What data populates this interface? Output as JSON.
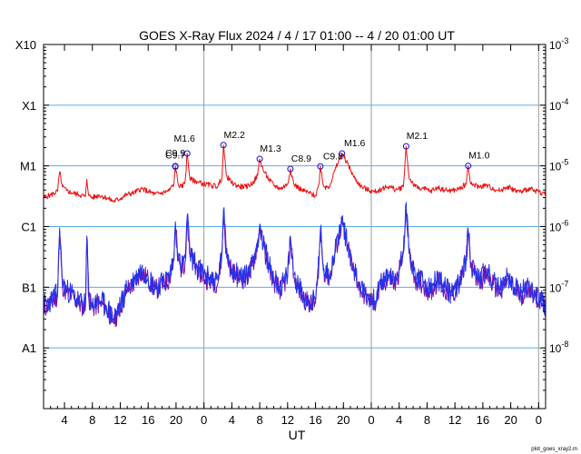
{
  "chart_data": {
    "type": "line",
    "title": "GOES X-Ray Flux   2024  /  4  /  17   01:00 --  4  /  20   01:00   UT",
    "xlabel": "UT",
    "credit": "plot_goes_xray2.m",
    "xlim_hours": [
      0,
      72
    ],
    "y_scale": "log",
    "ylim": [
      1e-09,
      0.001
    ],
    "grid": true,
    "colors": {
      "long_channel": "#ee1111",
      "short_channel": "#2233ee",
      "short_low": "#7711aa",
      "grid": "#5aaee6",
      "day_divider": "#999999",
      "marker": "#1111cc"
    },
    "left_axis_labels": [
      {
        "label": "X10",
        "flux": 0.001
      },
      {
        "label": "X1",
        "flux": 0.0001
      },
      {
        "label": "M1",
        "flux": 1e-05
      },
      {
        "label": "C1",
        "flux": 1e-06
      },
      {
        "label": "B1",
        "flux": 1e-07
      },
      {
        "label": "A1",
        "flux": 1e-08
      }
    ],
    "right_axis_labels": [
      {
        "base": "10",
        "exp": "-3",
        "flux": 0.001
      },
      {
        "base": "10",
        "exp": "-4",
        "flux": 0.0001
      },
      {
        "base": "10",
        "exp": "-5",
        "flux": 1e-05
      },
      {
        "base": "10",
        "exp": "-6",
        "flux": 1e-06
      },
      {
        "base": "10",
        "exp": "-7",
        "flux": 1e-07
      },
      {
        "base": "10",
        "exp": "-8",
        "flux": 1e-08
      }
    ],
    "x_ticks": [
      {
        "label": "4",
        "hour": 3
      },
      {
        "label": "8",
        "hour": 7
      },
      {
        "label": "12",
        "hour": 11
      },
      {
        "label": "16",
        "hour": 15
      },
      {
        "label": "20",
        "hour": 19
      },
      {
        "label": "0",
        "hour": 23
      },
      {
        "label": "4",
        "hour": 27
      },
      {
        "label": "8",
        "hour": 31
      },
      {
        "label": "12",
        "hour": 35
      },
      {
        "label": "16",
        "hour": 39
      },
      {
        "label": "20",
        "hour": 43
      },
      {
        "label": "0",
        "hour": 47
      },
      {
        "label": "4",
        "hour": 51
      },
      {
        "label": "8",
        "hour": 55
      },
      {
        "label": "12",
        "hour": 59
      },
      {
        "label": "16",
        "hour": 63
      },
      {
        "label": "20",
        "hour": 67
      },
      {
        "label": "0",
        "hour": 71
      }
    ],
    "day_dividers_hour": [
      23,
      47,
      71
    ],
    "flares": [
      {
        "label": "C9.7",
        "hour": 18.9,
        "flux": 9.7e-06
      },
      {
        "label": "C9.9",
        "hour": 18.9,
        "flux": 9.9e-06
      },
      {
        "label": "M1.6",
        "hour": 20.6,
        "flux": 1.6e-05
      },
      {
        "label": "M2.2",
        "hour": 25.8,
        "flux": 2.2e-05
      },
      {
        "label": "M1.3",
        "hour": 31.0,
        "flux": 1.3e-05
      },
      {
        "label": "C8.9",
        "hour": 35.4,
        "flux": 8.9e-06
      },
      {
        "label": "C9.8",
        "hour": 39.7,
        "flux": 9.8e-06
      },
      {
        "label": "M1.6",
        "hour": 42.8,
        "flux": 1.6e-05
      },
      {
        "label": "M2.1",
        "hour": 52.0,
        "flux": 2.1e-05
      },
      {
        "label": "M1.0",
        "hour": 60.9,
        "flux": 1e-05
      }
    ],
    "long_channel_series": {
      "hour": [
        0,
        1,
        2,
        2.3,
        2.7,
        3.3,
        4,
        5,
        6,
        6.2,
        6.5,
        7,
        8,
        9,
        10,
        11,
        12,
        13,
        14,
        15,
        16,
        17,
        18,
        18.7,
        18.9,
        19.3,
        19.8,
        20.3,
        20.6,
        21,
        22,
        23,
        24,
        25,
        25.6,
        25.8,
        26.2,
        27,
        28,
        29,
        30,
        30.7,
        31,
        31.5,
        32.3,
        33,
        34,
        35,
        35.4,
        35.9,
        37,
        38,
        39,
        39.5,
        39.7,
        40.2,
        41,
        41.8,
        42.8,
        43.6,
        44.5,
        45.5,
        46.5,
        47.5,
        48.5,
        49.5,
        50.5,
        51.6,
        52,
        52.4,
        53.3,
        54.5,
        55.5,
        56.5,
        57.5,
        58.5,
        59.5,
        60.6,
        60.9,
        61.3,
        62.5,
        63.5,
        64.5,
        65.5,
        66.5,
        67.5,
        68.5,
        69.5,
        70.5,
        71.5,
        72
      ],
      "flux": [
        3e-06,
        3.3e-06,
        3.8e-06,
        8e-06,
        4.5e-06,
        3.9e-06,
        3.6e-06,
        3.4e-06,
        3.1e-06,
        6e-06,
        3.2e-06,
        3e-06,
        3.3e-06,
        3e-06,
        2.6e-06,
        2.9e-06,
        3.4e-06,
        3.6e-06,
        4.2e-06,
        3.8e-06,
        3.4e-06,
        3.6e-06,
        3.9e-06,
        5e-06,
        9.9e-06,
        5e-06,
        4.4e-06,
        5.5e-06,
        1.6e-05,
        6e-06,
        5.5e-06,
        5e-06,
        4.8e-06,
        4.6e-06,
        6.5e-06,
        2.2e-05,
        7e-06,
        5.2e-06,
        4.6e-06,
        4.5e-06,
        5.2e-06,
        7e-06,
        1.3e-05,
        8.5e-06,
        6e-06,
        4.8e-06,
        4.2e-06,
        5e-06,
        8.9e-06,
        5e-06,
        4e-06,
        3.6e-06,
        3.2e-06,
        5e-06,
        9.8e-06,
        4.5e-06,
        4.6e-06,
        8.5e-06,
        1.6e-05,
        1.1e-05,
        6.5e-06,
        4.6e-06,
        4e-06,
        3.7e-06,
        4.2e-06,
        4.6e-06,
        4e-06,
        4.5e-06,
        2.1e-05,
        6.5e-06,
        4.5e-06,
        4.2e-06,
        3.8e-06,
        4.4e-06,
        4e-06,
        3.9e-06,
        4.1e-06,
        5e-06,
        1e-05,
        5e-06,
        4.5e-06,
        4.8e-06,
        4.2e-06,
        3.9e-06,
        4.6e-06,
        4e-06,
        3.7e-06,
        4.2e-06,
        3.9e-06,
        3.6e-06,
        3.4e-06
      ]
    },
    "short_channel_series": {
      "hour": [
        0,
        1,
        2,
        2.3,
        2.7,
        3.3,
        4,
        5,
        6,
        6.2,
        6.5,
        7,
        8,
        9,
        10,
        11,
        12,
        13,
        14,
        15,
        16,
        17,
        18,
        18.7,
        18.9,
        19.3,
        19.8,
        20.3,
        20.6,
        21,
        22,
        23,
        24,
        25,
        25.6,
        25.8,
        26.2,
        27,
        28,
        29,
        30,
        30.7,
        31,
        31.5,
        32.3,
        33,
        34,
        35,
        35.4,
        35.9,
        37,
        38,
        39,
        39.5,
        39.7,
        40.2,
        41,
        41.8,
        42.8,
        43.6,
        44.5,
        45.5,
        46.5,
        47.5,
        48.5,
        49.5,
        50.5,
        51.6,
        52,
        52.4,
        53.3,
        54.5,
        55.5,
        56.5,
        57.5,
        58.5,
        59.5,
        60.6,
        60.9,
        61.3,
        62.5,
        63.5,
        64.5,
        65.5,
        66.5,
        67.5,
        68.5,
        69.5,
        70.5,
        71.5,
        72
      ],
      "flux": [
        5e-08,
        6e-08,
        8e-08,
        9.5e-07,
        1.2e-07,
        9e-08,
        8e-08,
        6e-08,
        5e-08,
        7e-07,
        7e-08,
        5e-08,
        6e-08,
        5e-08,
        3e-08,
        5e-08,
        1e-07,
        1.3e-07,
        2e-07,
        1.5e-07,
        1e-07,
        1.2e-07,
        1.5e-07,
        3e-07,
        1.2e-06,
        3e-07,
        2.2e-07,
        3e-07,
        1.5e-06,
        3.5e-07,
        2.2e-07,
        1.6e-07,
        1.4e-07,
        1.3e-07,
        4e-07,
        1.9e-06,
        4e-07,
        2e-07,
        1.6e-07,
        1.5e-07,
        2.5e-07,
        6e-07,
        1.1e-06,
        5e-07,
        2.5e-07,
        1.4e-07,
        1e-07,
        1.6e-07,
        7e-07,
        1.6e-07,
        8e-08,
        6e-08,
        6e-08,
        3e-07,
        9e-07,
        2e-07,
        1.6e-07,
        4e-07,
        1.3e-06,
        5e-07,
        2e-07,
        1e-07,
        7e-08,
        6e-08,
        1.2e-07,
        1.6e-07,
        1.2e-07,
        4e-07,
        2.5e-06,
        4e-07,
        1.5e-07,
        1.2e-07,
        9e-08,
        1.4e-07,
        1e-07,
        8e-08,
        1.1e-07,
        3e-07,
        9e-07,
        2.5e-07,
        1.4e-07,
        1.8e-07,
        1.2e-07,
        9e-08,
        1.5e-07,
        1e-07,
        8e-08,
        1.1e-07,
        8e-08,
        6e-08,
        5e-08
      ]
    }
  }
}
